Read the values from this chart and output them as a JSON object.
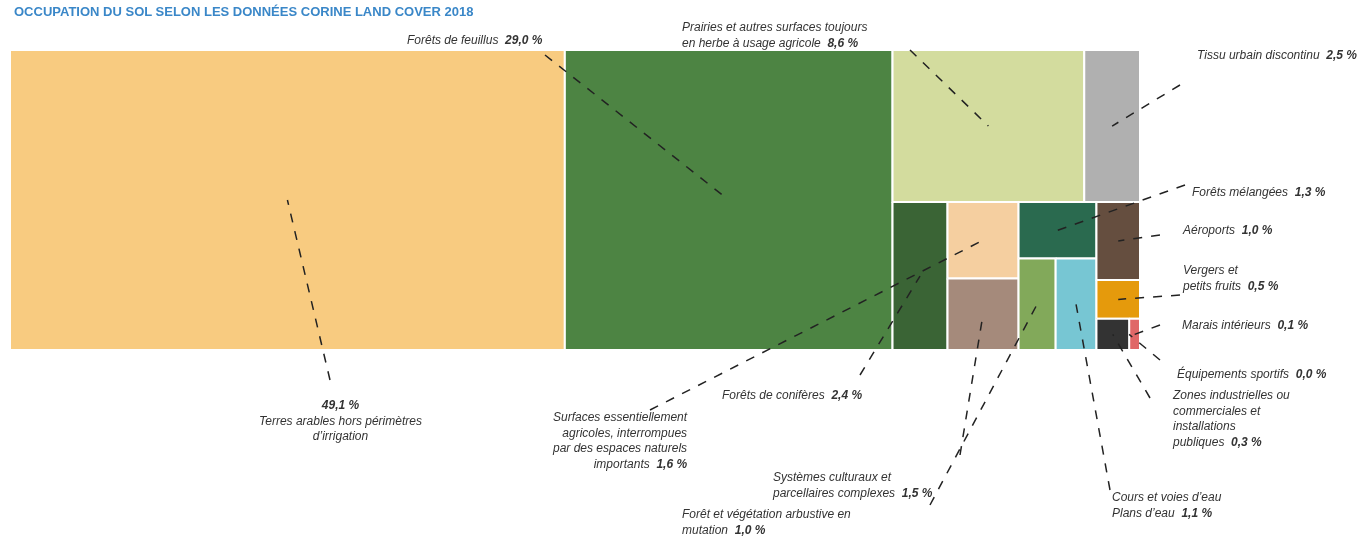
{
  "chart_data": {
    "type": "other",
    "title": "OCCUPATION DU SOL SELON LES DONNÉES CORINE LAND COVER 2018",
    "categories": [
      "Terres arables hors périmètres d’irrigation",
      "Forêts de feuillus",
      "Prairies et autres surfaces toujours en herbe à usage agricole",
      "Tissu urbain discontinu",
      "Forêts de conifères",
      "Surfaces essentiellement agricoles, interrompues par des espaces naturels importants",
      "Systèmes culturaux et parcellaires complexes",
      "Forêts mélangées",
      "Forêt et végétation arbustive en mutation",
      "Cours et voies d’eau\nPlans d’eau",
      "Aéroports",
      "Vergers et petits fruits",
      "Marais intérieurs",
      "Zones industrielles ou commerciales et installations publiques",
      "Équipements sportifs"
    ],
    "values": [
      49.1,
      29.0,
      8.6,
      2.5,
      2.4,
      1.6,
      1.5,
      1.3,
      1.0,
      1.1,
      1.0,
      0.5,
      0.1,
      0.3,
      0.0
    ],
    "value_labels": [
      "49,1 %",
      "29,0 %",
      "8,6 %",
      "2,5 %",
      "2,4 %",
      "1,6 %",
      "1,5 %",
      "1,3 %",
      "1,0 %",
      "1,1 %",
      "1,0 %",
      "0,5 %",
      "0,1 %",
      "0,3 %",
      "0,0 %"
    ],
    "colors": [
      "#f8cb80",
      "#4d8443",
      "#d3dc9e",
      "#b0b0b0",
      "#3a6435",
      "#f5cfa0",
      "#a58a7b",
      "#2a6a4f",
      "#82a95a",
      "#77c6d3",
      "#654e3f",
      "#e59a0c",
      "#e06767",
      "#333333",
      null
    ]
  }
}
